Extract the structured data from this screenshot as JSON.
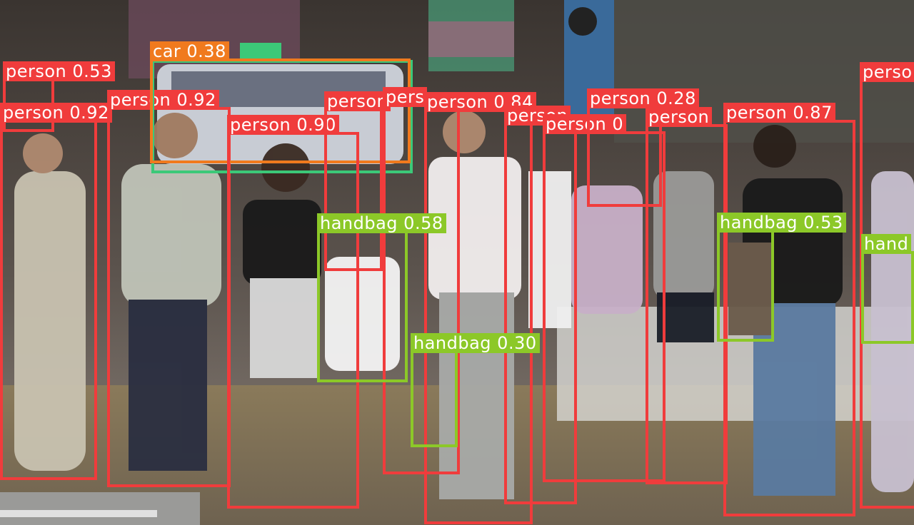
{
  "scene": {
    "description_colors": {
      "person": "#f03c3c",
      "car": "#f07a1e",
      "truck": "#3cc878",
      "handbag": "#8cc828"
    }
  },
  "detections": [
    {
      "label": "person 0.53",
      "cls": "person"
    },
    {
      "label": "person 0.92",
      "cls": "person"
    },
    {
      "label": "person 0.92",
      "cls": "person"
    },
    {
      "label": "car 0.38",
      "cls": "car"
    },
    {
      "label": "",
      "cls": "truck"
    },
    {
      "label": "person 0.90",
      "cls": "person"
    },
    {
      "label": "person",
      "cls": "person"
    },
    {
      "label": "pers",
      "cls": "person"
    },
    {
      "label": "person 0.84",
      "cls": "person"
    },
    {
      "label": "person",
      "cls": "person"
    },
    {
      "label": "person 0",
      "cls": "person"
    },
    {
      "label": "person 0.28",
      "cls": "person"
    },
    {
      "label": "person",
      "cls": "person"
    },
    {
      "label": "person 0.87",
      "cls": "person"
    },
    {
      "label": "perso",
      "cls": "person"
    },
    {
      "label": "handbag 0.58",
      "cls": "handbag"
    },
    {
      "label": "handbag 0.30",
      "cls": "handbag"
    },
    {
      "label": "handbag 0.53",
      "cls": "handbag"
    },
    {
      "label": "hand",
      "cls": "handbag"
    }
  ]
}
